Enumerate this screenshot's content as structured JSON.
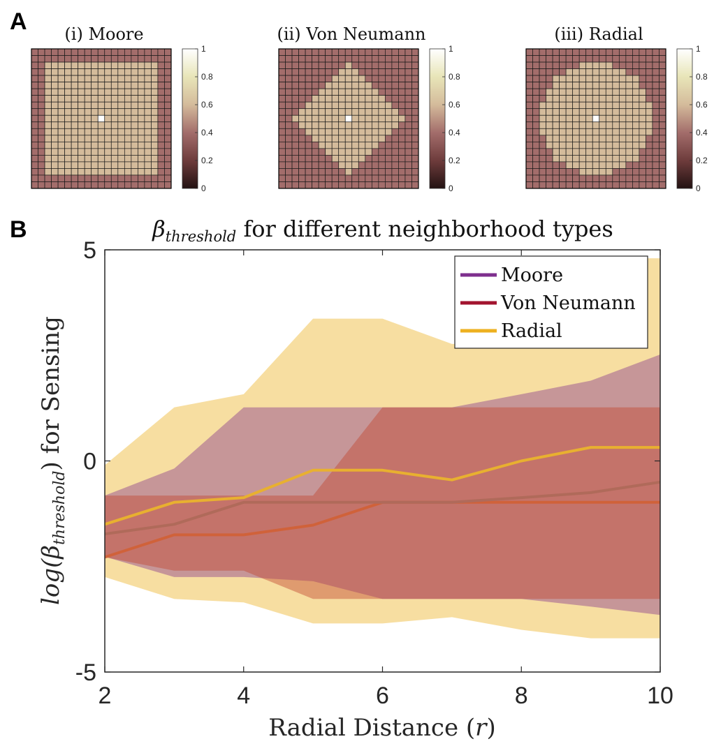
{
  "chart_data": [
    {
      "type": "heatmap",
      "panel_label": "A",
      "title": "(i) Moore",
      "neighborhood": "moore",
      "grid_size": 21,
      "radius": 8,
      "value_outside": 0.4,
      "value_inside": 0.6,
      "value_center": 1.0,
      "colorbar_ticks": [
        "0",
        "0.2",
        "0.4",
        "0.6",
        "0.8",
        "1"
      ],
      "clim": [
        0,
        1
      ]
    },
    {
      "type": "heatmap",
      "title": "(ii) Von Neumann",
      "neighborhood": "von_neumann",
      "grid_size": 21,
      "radius": 8,
      "value_outside": 0.4,
      "value_inside": 0.6,
      "value_center": 1.0,
      "colorbar_ticks": [
        "0",
        "0.2",
        "0.4",
        "0.6",
        "0.8",
        "1"
      ],
      "clim": [
        0,
        1
      ]
    },
    {
      "type": "heatmap",
      "title": "(iii) Radial",
      "neighborhood": "radial",
      "grid_size": 21,
      "radius": 8,
      "value_outside": 0.4,
      "value_inside": 0.6,
      "value_center": 1.0,
      "colorbar_ticks": [
        "0",
        "0.2",
        "0.4",
        "0.6",
        "0.8",
        "1"
      ],
      "clim": [
        0,
        1
      ]
    },
    {
      "type": "line",
      "panel_label": "B",
      "title": "βthreshold for different neighborhood types",
      "title_symbol": "β",
      "title_subscript": "threshold",
      "title_rest": " for different neighborhood types",
      "xlabel": "Radial Distance (r)",
      "xlabel_text": "Radial Distance (",
      "xlabel_var": "r",
      "xlabel_close": ")",
      "ylabel": "log(βthreshold) for Sensing",
      "ylabel_func": "log(",
      "ylabel_symbol": "β",
      "ylabel_subscript": "threshold",
      "ylabel_close": ")",
      "ylabel_rest": " for Sensing",
      "xlim": [
        2,
        10
      ],
      "ylim": [
        -5,
        5
      ],
      "xticks": [
        "2",
        "4",
        "6",
        "8",
        "10"
      ],
      "yticks": [
        "-5",
        "0",
        "5"
      ],
      "x": [
        2,
        3,
        4,
        5,
        6,
        7,
        8,
        9,
        10
      ],
      "legend_position": "top-right",
      "series": [
        {
          "name": "Moore",
          "color": "#7E2F8E",
          "band_color": "#8A3F8E",
          "mean": [
            -1.73,
            -1.5,
            -0.98,
            -0.98,
            -0.98,
            -0.98,
            -0.87,
            -0.75,
            -0.5
          ],
          "upper": [
            -0.82,
            -0.18,
            1.27,
            1.27,
            1.27,
            1.27,
            1.58,
            1.9,
            2.52
          ],
          "lower": [
            -2.27,
            -2.75,
            -2.75,
            -2.85,
            -3.27,
            -3.27,
            -3.27,
            -3.45,
            -3.65
          ]
        },
        {
          "name": "Von Neumann",
          "color": "#A2142F",
          "band_color": "#C04A34",
          "mean": [
            -2.28,
            -1.75,
            -1.75,
            -1.52,
            -0.98,
            -0.98,
            -0.98,
            -0.98,
            -0.98
          ],
          "upper": [
            -0.82,
            -0.82,
            -0.82,
            -0.82,
            1.27,
            1.27,
            1.27,
            1.27,
            1.27
          ],
          "lower": [
            -2.28,
            -2.6,
            -2.6,
            -3.27,
            -3.27,
            -3.27,
            -3.27,
            -3.27,
            -3.27
          ]
        },
        {
          "name": "Radial",
          "color": "#EDB120",
          "band_color": "#EDB120",
          "mean": [
            -1.5,
            -0.98,
            -0.87,
            -0.22,
            -0.22,
            -0.45,
            0.0,
            0.32,
            0.32
          ],
          "upper": [
            -0.1,
            1.27,
            1.58,
            3.37,
            3.37,
            2.77,
            2.77,
            4.8,
            4.8
          ],
          "lower": [
            -2.75,
            -3.27,
            -3.35,
            -3.85,
            -3.85,
            -3.7,
            -4.0,
            -4.2,
            -4.2
          ]
        }
      ]
    }
  ]
}
